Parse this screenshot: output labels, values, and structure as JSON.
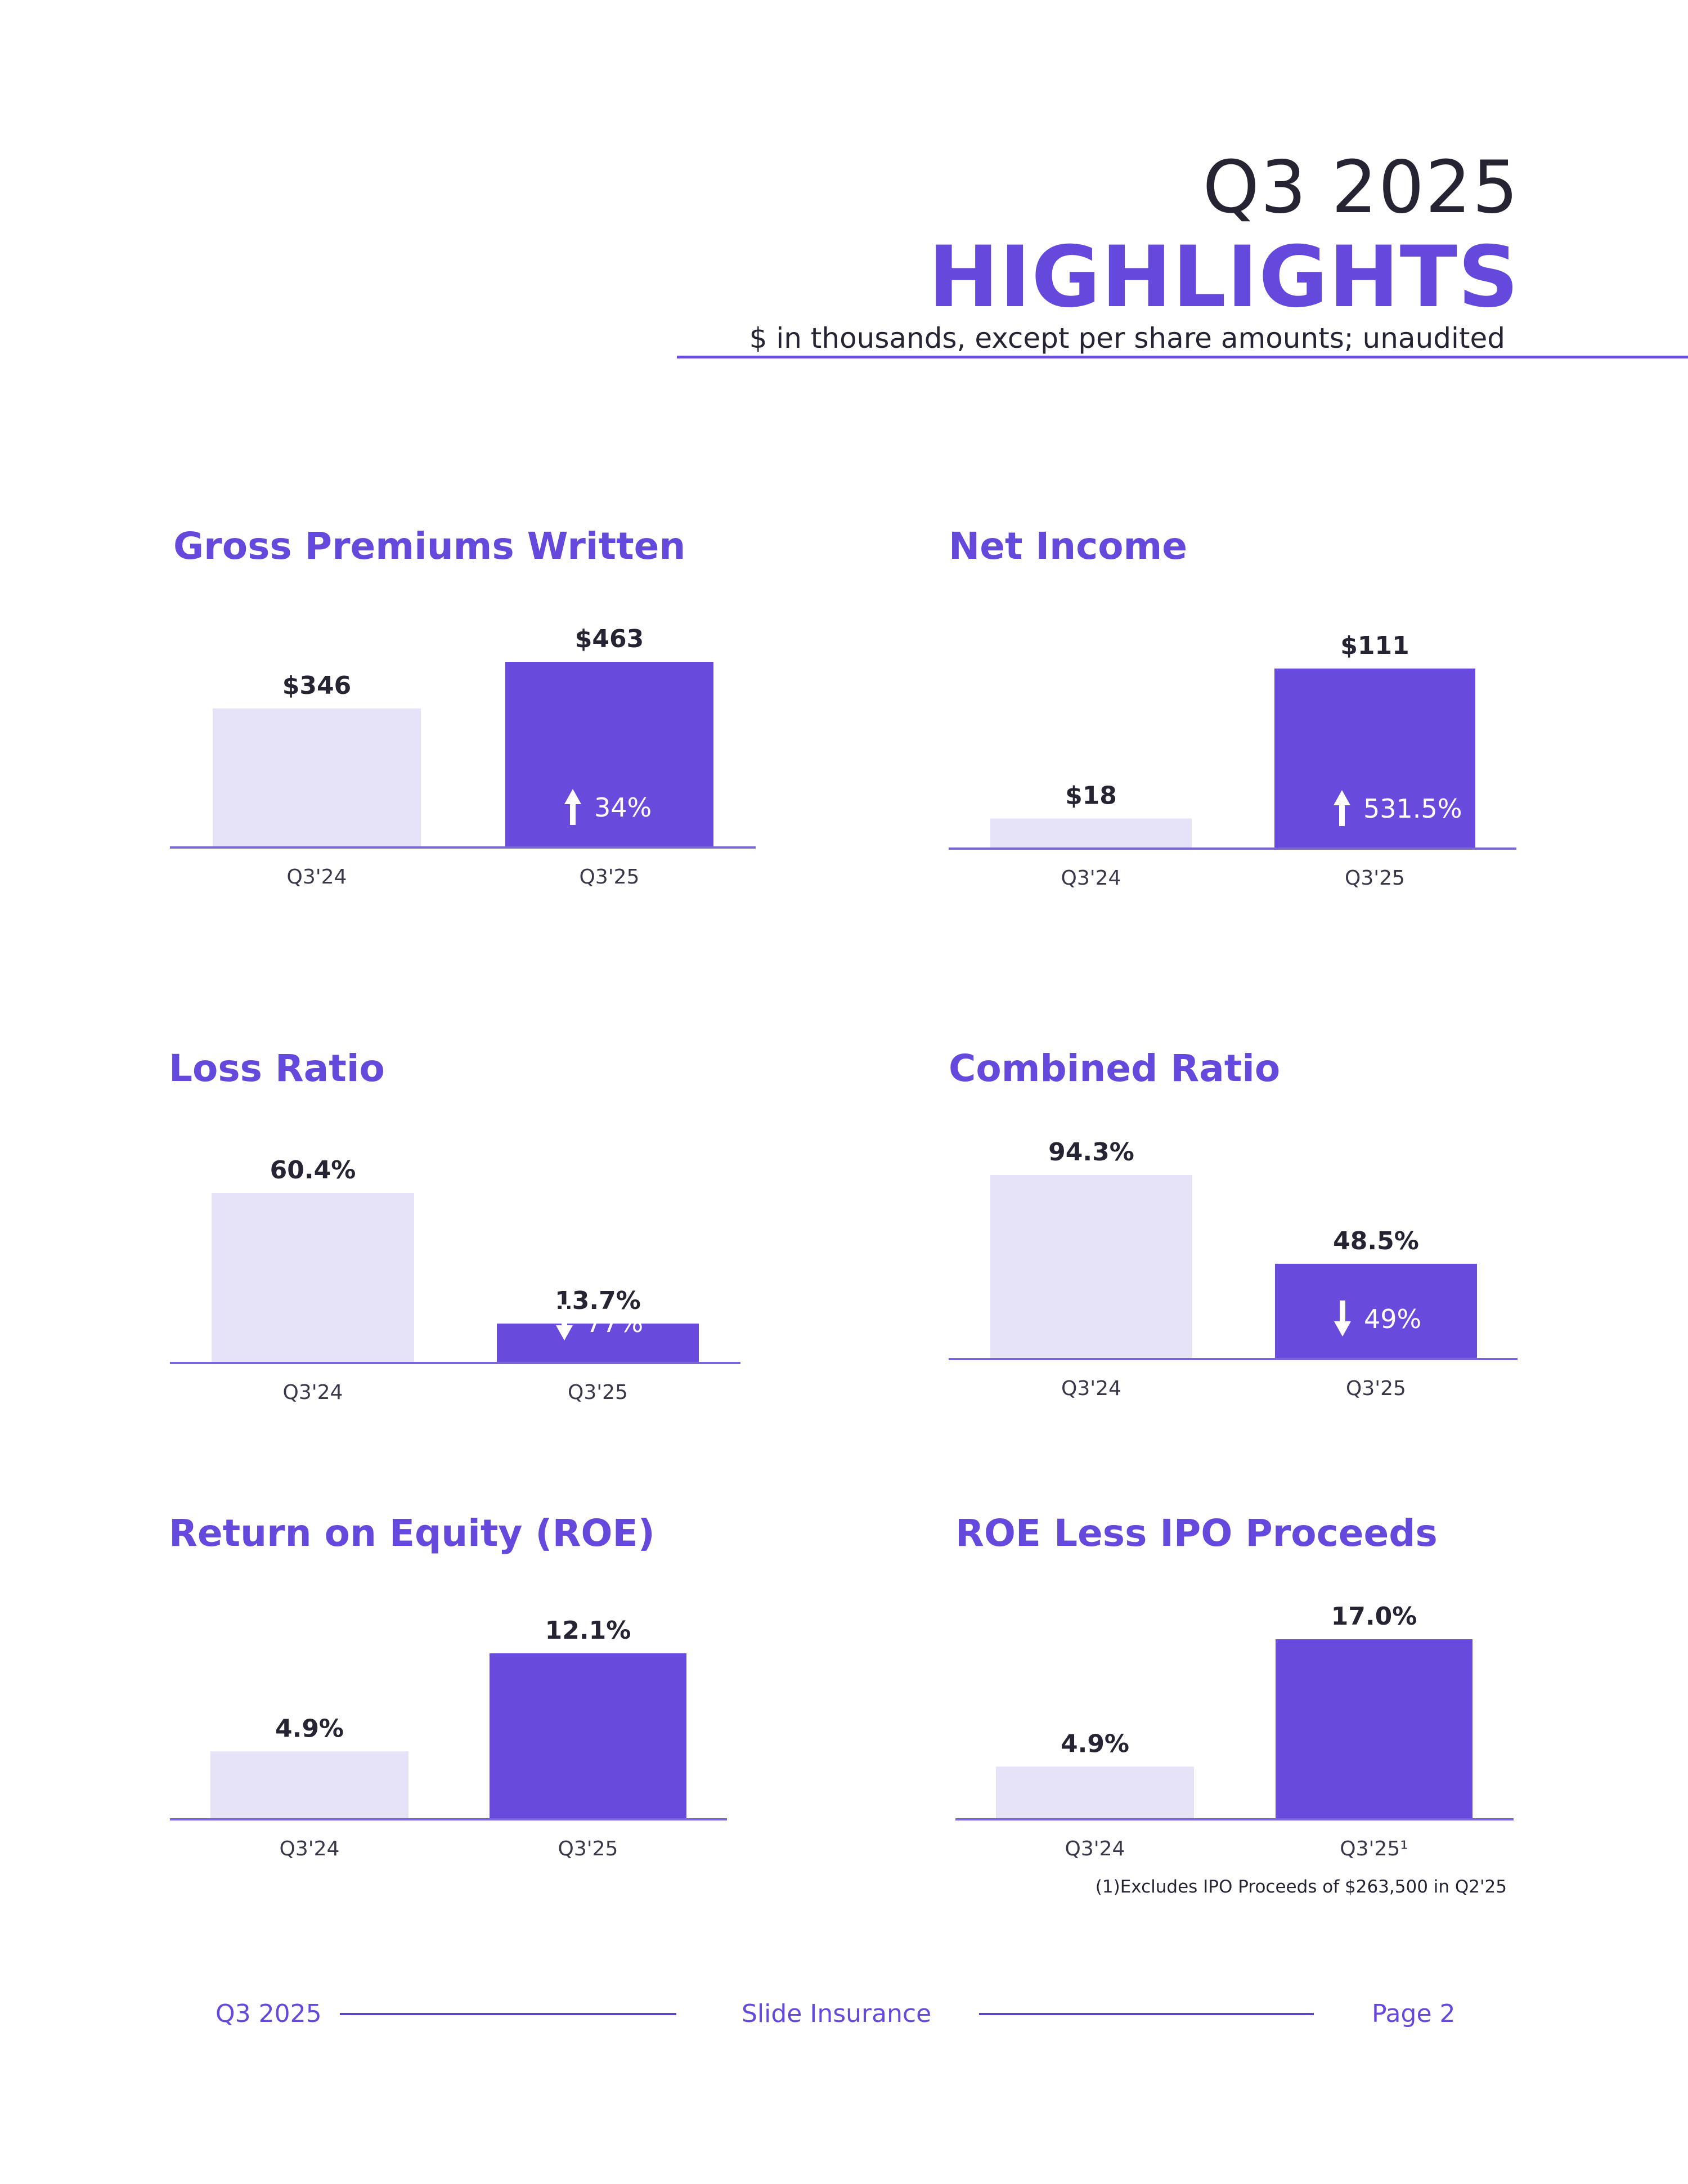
{
  "header": {
    "period": "Q3 2025",
    "title": "HIGHLIGHTS",
    "subtitle": "$ in thousands, except per share amounts; unaudited"
  },
  "colors": {
    "accent": "#6548dc",
    "bar_current": "#684adc",
    "bar_prior": "#e6e3f8",
    "text": "#262433"
  },
  "chart_data": [
    {
      "type": "bar",
      "title": "Gross Premiums Written",
      "categories": [
        "Q3'24",
        "Q3'25"
      ],
      "values": [
        346,
        463
      ],
      "value_labels": [
        "$346",
        "$463"
      ],
      "change": {
        "direction": "up",
        "label": "34%"
      },
      "ylim": [
        0,
        463
      ]
    },
    {
      "type": "bar",
      "title": "Net Income",
      "categories": [
        "Q3'24",
        "Q3'25"
      ],
      "values": [
        18,
        111
      ],
      "value_labels": [
        "$18",
        "$111"
      ],
      "change": {
        "direction": "up",
        "label": "531.5%"
      },
      "ylim": [
        0,
        111
      ]
    },
    {
      "type": "bar",
      "title": "Loss Ratio",
      "categories": [
        "Q3'24",
        "Q3'25"
      ],
      "values": [
        60.4,
        13.7
      ],
      "value_labels": [
        "60.4%",
        "13.7%"
      ],
      "change": {
        "direction": "down",
        "label": "77%"
      },
      "ylim": [
        0,
        60.4
      ]
    },
    {
      "type": "bar",
      "title": "Combined Ratio",
      "categories": [
        "Q3'24",
        "Q3'25"
      ],
      "values": [
        94.3,
        48.5
      ],
      "value_labels": [
        "94.3%",
        "48.5%"
      ],
      "change": {
        "direction": "down",
        "label": "49%"
      },
      "ylim": [
        0,
        94.3
      ]
    },
    {
      "type": "bar",
      "title": "Return on Equity (ROE)",
      "categories": [
        "Q3'24",
        "Q3'25"
      ],
      "values": [
        4.9,
        12.1
      ],
      "value_labels": [
        "4.9%",
        "12.1%"
      ],
      "change": null,
      "ylim": [
        0,
        12.1
      ]
    },
    {
      "type": "bar",
      "title": "ROE Less IPO Proceeds",
      "categories": [
        "Q3'24",
        "Q3'25¹"
      ],
      "values": [
        4.9,
        17.0
      ],
      "value_labels": [
        "4.9%",
        "17.0%"
      ],
      "change": null,
      "ylim": [
        0,
        17.0
      ]
    }
  ],
  "footnote": "(1)Excludes IPO Proceeds of $263,500 in Q2'25",
  "footer": {
    "left": "Q3 2025",
    "center": "Slide Insurance",
    "right": "Page 2"
  }
}
